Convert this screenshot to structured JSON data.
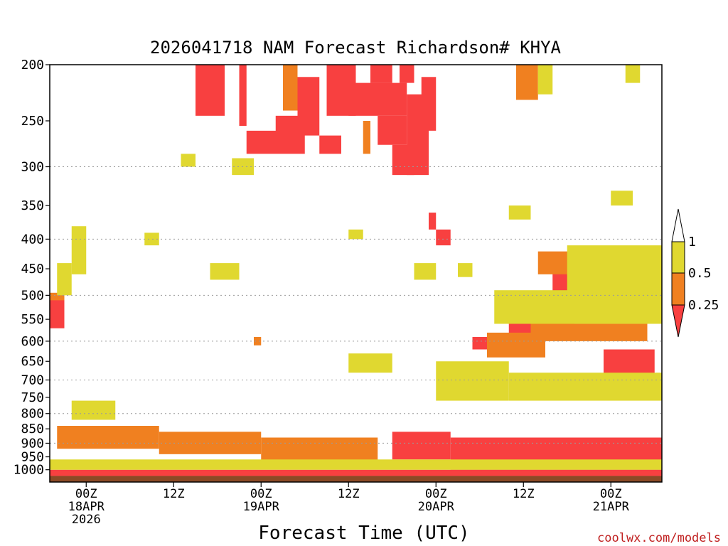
{
  "chart_data": {
    "type": "heatmap",
    "title": "2026041718 NAM Forecast Richardson# KHYA",
    "xlabel": "Forecast Time (UTC)",
    "ylabel": "",
    "source_label": "coolwx.com/models",
    "y_scale": "log-pressure",
    "ylim": [
      1050,
      200
    ],
    "xlim": [
      -5,
      79
    ],
    "grid": "dotted horizontal lines at 300, 400, 500, 600, 700, 800, 900 hPa",
    "y_ticks": [
      200,
      250,
      300,
      350,
      400,
      450,
      500,
      550,
      600,
      650,
      700,
      750,
      800,
      850,
      900,
      950,
      1000
    ],
    "y_ticks_with_dotted_grid": [
      300,
      400,
      500,
      600,
      700,
      800,
      900
    ],
    "x_ticks": [
      {
        "x": 0,
        "lines": [
          "00Z",
          "18APR",
          "2026"
        ]
      },
      {
        "x": 12,
        "lines": [
          "12Z"
        ]
      },
      {
        "x": 24,
        "lines": [
          "00Z",
          "19APR"
        ]
      },
      {
        "x": 36,
        "lines": [
          "12Z"
        ]
      },
      {
        "x": 48,
        "lines": [
          "00Z",
          "20APR"
        ]
      },
      {
        "x": 60,
        "lines": [
          "12Z"
        ]
      },
      {
        "x": 72,
        "lines": [
          "00Z",
          "21APR"
        ]
      }
    ],
    "x_units": "hours from 00Z 18APR 2026",
    "legend": {
      "placement": "right",
      "thresholds": [
        "1",
        "0.5",
        "0.25"
      ],
      "bins": [
        {
          "range": ">1",
          "color": "#ffffff"
        },
        {
          "range": "0.5-1",
          "color": "#e0d830"
        },
        {
          "range": "0.25-0.5",
          "color": "#f08020"
        },
        {
          "range": "<0.25",
          "color": "#f84040"
        }
      ]
    },
    "ground_color": "#8b4a26",
    "ground_level_hpa": 1025,
    "cells": [
      {
        "level": "<0.25",
        "x": [
          15,
          19
        ],
        "p": [
          200,
          245
        ]
      },
      {
        "level": "<0.25",
        "x": [
          21,
          22
        ],
        "p": [
          200,
          255
        ]
      },
      {
        "level": "<0.25",
        "x": [
          22,
          30
        ],
        "p": [
          260,
          285
        ]
      },
      {
        "level": "<0.25",
        "x": [
          29,
          32
        ],
        "p": [
          210,
          265
        ]
      },
      {
        "level": "<0.25",
        "x": [
          33,
          37
        ],
        "p": [
          200,
          245
        ]
      },
      {
        "level": "<0.25",
        "x": [
          36,
          44
        ],
        "p": [
          215,
          245
        ]
      },
      {
        "level": "<0.25",
        "x": [
          39,
          42
        ],
        "p": [
          200,
          215
        ]
      },
      {
        "level": "<0.25",
        "x": [
          40,
          44
        ],
        "p": [
          245,
          275
        ]
      },
      {
        "level": "<0.25",
        "x": [
          42,
          45
        ],
        "p": [
          275,
          310
        ]
      },
      {
        "level": "<0.25",
        "x": [
          43,
          45
        ],
        "p": [
          200,
          215
        ]
      },
      {
        "level": "<0.25",
        "x": [
          44,
          47
        ],
        "p": [
          225,
          310
        ]
      },
      {
        "level": "<0.25",
        "x": [
          46,
          48
        ],
        "p": [
          210,
          260
        ]
      },
      {
        "level": "<0.25",
        "x": [
          26,
          29
        ],
        "p": [
          245,
          270
        ]
      },
      {
        "level": "<0.25",
        "x": [
          32,
          35
        ],
        "p": [
          265,
          285
        ]
      },
      {
        "level": "<0.25",
        "x": [
          47,
          48
        ],
        "p": [
          360,
          385
        ]
      },
      {
        "level": "<0.25",
        "x": [
          48,
          50
        ],
        "p": [
          385,
          410
        ]
      },
      {
        "level": "<0.25",
        "x": [
          -5,
          -3
        ],
        "p": [
          505,
          570
        ]
      },
      {
        "level": "<0.25",
        "x": [
          64,
          70
        ],
        "p": [
          450,
          530
        ]
      },
      {
        "level": "<0.25",
        "x": [
          67,
          75
        ],
        "p": [
          430,
          480
        ]
      },
      {
        "level": "<0.25",
        "x": [
          58,
          67
        ],
        "p": [
          535,
          590
        ]
      },
      {
        "level": "<0.25",
        "x": [
          53,
          62
        ],
        "p": [
          590,
          620
        ]
      },
      {
        "level": "<0.25",
        "x": [
          71,
          78
        ],
        "p": [
          620,
          720
        ]
      },
      {
        "level": "<0.25",
        "x": [
          42,
          50
        ],
        "p": [
          860,
          960
        ]
      },
      {
        "level": "<0.25",
        "x": [
          50,
          79
        ],
        "p": [
          880,
          1000
        ]
      },
      {
        "level": "<0.25",
        "x": [
          -5,
          79
        ],
        "p": [
          1000,
          1025
        ]
      },
      {
        "level": "0.25-0.5",
        "x": [
          27,
          29
        ],
        "p": [
          200,
          240
        ]
      },
      {
        "level": "0.25-0.5",
        "x": [
          38,
          39
        ],
        "p": [
          250,
          285
        ]
      },
      {
        "level": "0.25-0.5",
        "x": [
          59,
          62
        ],
        "p": [
          200,
          230
        ]
      },
      {
        "level": "0.25-0.5",
        "x": [
          -5,
          -3
        ],
        "p": [
          495,
          510
        ]
      },
      {
        "level": "0.25-0.5",
        "x": [
          62,
          77
        ],
        "p": [
          420,
          460
        ]
      },
      {
        "level": "0.25-0.5",
        "x": [
          55,
          63
        ],
        "p": [
          580,
          640
        ]
      },
      {
        "level": "0.25-0.5",
        "x": [
          61,
          77
        ],
        "p": [
          560,
          600
        ]
      },
      {
        "level": "0.25-0.5",
        "x": [
          -4,
          10
        ],
        "p": [
          840,
          920
        ]
      },
      {
        "level": "0.25-0.5",
        "x": [
          10,
          24
        ],
        "p": [
          860,
          940
        ]
      },
      {
        "level": "0.25-0.5",
        "x": [
          24,
          40
        ],
        "p": [
          880,
          980
        ]
      },
      {
        "level": "0.25-0.5",
        "x": [
          23,
          24
        ],
        "p": [
          590,
          610
        ]
      },
      {
        "level": "0.5-1",
        "x": [
          62,
          64
        ],
        "p": [
          200,
          225
        ]
      },
      {
        "level": "0.5-1",
        "x": [
          74,
          76
        ],
        "p": [
          200,
          215
        ]
      },
      {
        "level": "0.5-1",
        "x": [
          -2,
          0
        ],
        "p": [
          380,
          460
        ]
      },
      {
        "level": "0.5-1",
        "x": [
          -4,
          -2
        ],
        "p": [
          440,
          500
        ]
      },
      {
        "level": "0.5-1",
        "x": [
          8,
          10
        ],
        "p": [
          390,
          410
        ]
      },
      {
        "level": "0.5-1",
        "x": [
          13,
          15
        ],
        "p": [
          285,
          300
        ]
      },
      {
        "level": "0.5-1",
        "x": [
          17,
          21
        ],
        "p": [
          440,
          470
        ]
      },
      {
        "level": "0.5-1",
        "x": [
          20,
          23
        ],
        "p": [
          290,
          310
        ]
      },
      {
        "level": "0.5-1",
        "x": [
          36,
          38
        ],
        "p": [
          385,
          400
        ]
      },
      {
        "level": "0.5-1",
        "x": [
          58,
          61
        ],
        "p": [
          350,
          370
        ]
      },
      {
        "level": "0.5-1",
        "x": [
          72,
          75
        ],
        "p": [
          330,
          350
        ]
      },
      {
        "level": "0.5-1",
        "x": [
          66,
          79
        ],
        "p": [
          410,
          500
        ]
      },
      {
        "level": "0.5-1",
        "x": [
          56,
          79
        ],
        "p": [
          490,
          560
        ]
      },
      {
        "level": "0.5-1",
        "x": [
          -2,
          4
        ],
        "p": [
          760,
          820
        ]
      },
      {
        "level": "0.5-1",
        "x": [
          36,
          42
        ],
        "p": [
          630,
          680
        ]
      },
      {
        "level": "0.5-1",
        "x": [
          48,
          58
        ],
        "p": [
          650,
          760
        ]
      },
      {
        "level": "0.5-1",
        "x": [
          58,
          79
        ],
        "p": [
          680,
          760
        ]
      },
      {
        "level": "0.5-1",
        "x": [
          -5,
          79
        ],
        "p": [
          960,
          1000
        ]
      },
      {
        "level": "0.5-1",
        "x": [
          45,
          48
        ],
        "p": [
          440,
          470
        ]
      },
      {
        "level": "0.5-1",
        "x": [
          51,
          53
        ],
        "p": [
          440,
          465
        ]
      }
    ]
  },
  "colors": {
    "frame": "#000000",
    "grid": "#9a9a9a"
  }
}
